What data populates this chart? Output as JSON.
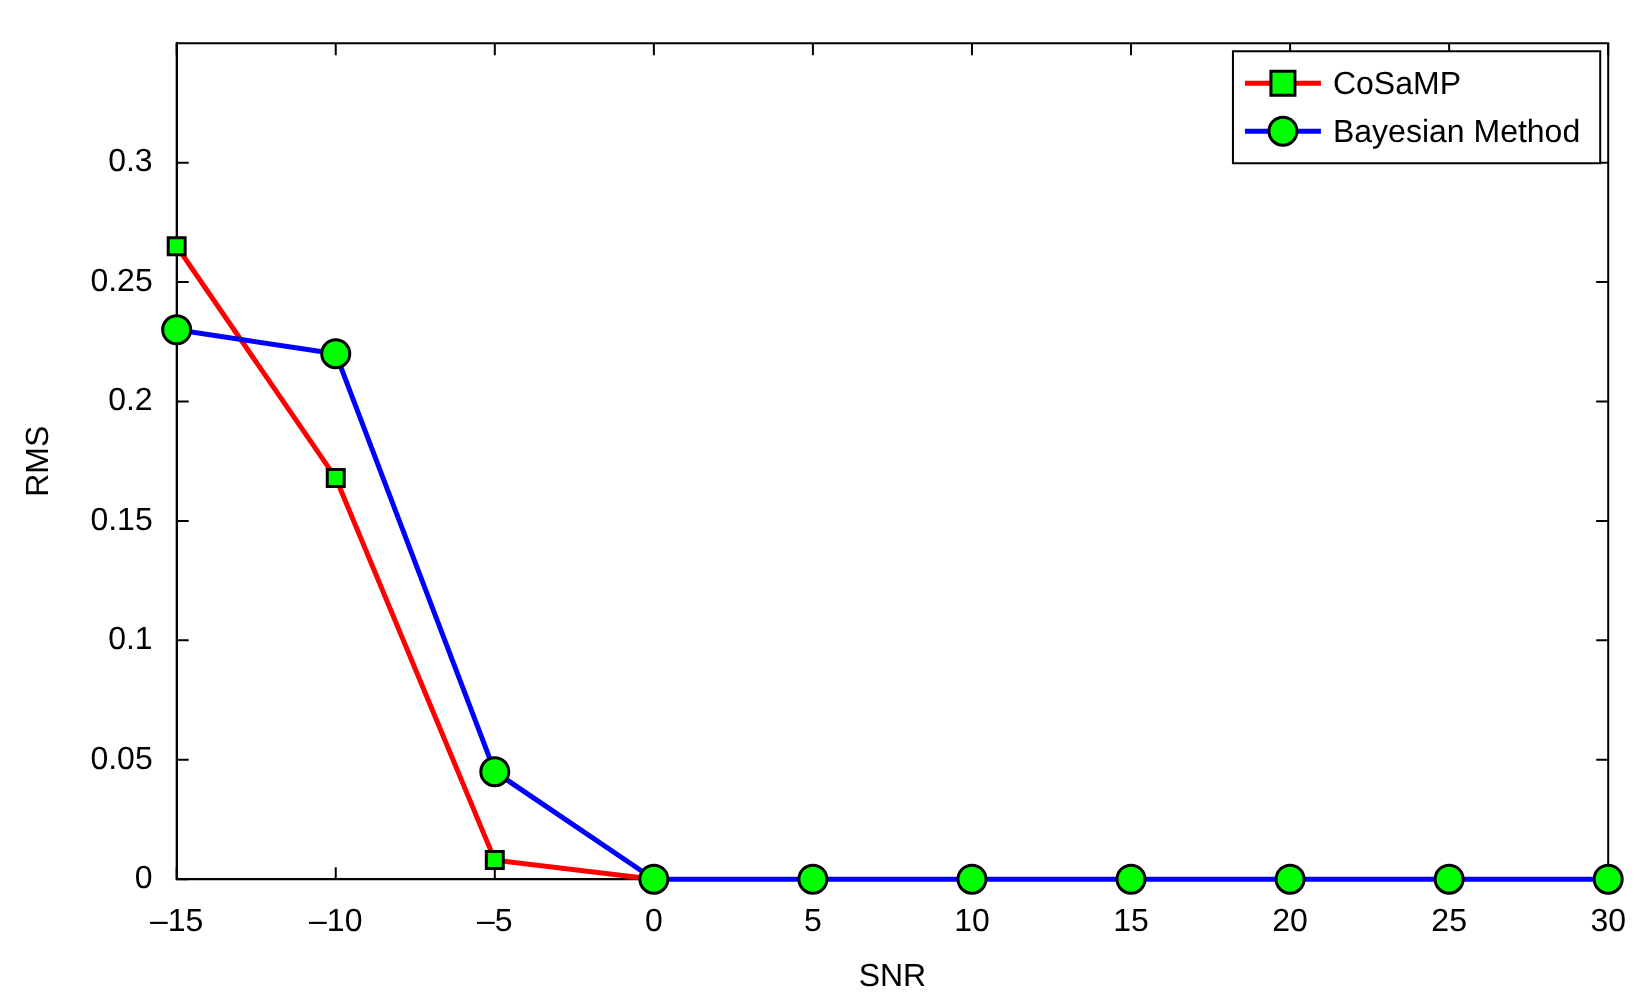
{
  "chart_data": {
    "type": "line",
    "xlabel": "SNR",
    "ylabel": "RMS",
    "x": [
      -15,
      -10,
      -5,
      0,
      5,
      10,
      15,
      20,
      25,
      30
    ],
    "series": [
      {
        "name": "CoSaMP",
        "color": "#ff0000",
        "marker": "square",
        "values": [
          0.265,
          0.168,
          0.008,
          0,
          null,
          null,
          null,
          null,
          null,
          null
        ]
      },
      {
        "name": "Bayesian Method",
        "color": "#0000ff",
        "marker": "circle",
        "values": [
          0.23,
          0.22,
          0.045,
          0,
          0,
          0,
          0,
          0,
          0,
          0
        ]
      }
    ],
    "xlim": [
      -15,
      30
    ],
    "xticks": [
      {
        "value": -15,
        "label": "–15"
      },
      {
        "value": -10,
        "label": "–10"
      },
      {
        "value": -5,
        "label": "–5"
      },
      0,
      5,
      10,
      15,
      20,
      25,
      30
    ],
    "ylim": [
      0,
      0.35
    ],
    "yticks": [
      0,
      0.05,
      0.1,
      0.15,
      0.2,
      0.25,
      0.3
    ],
    "grid": false,
    "legend": "top right",
    "line_style": "solid"
  }
}
